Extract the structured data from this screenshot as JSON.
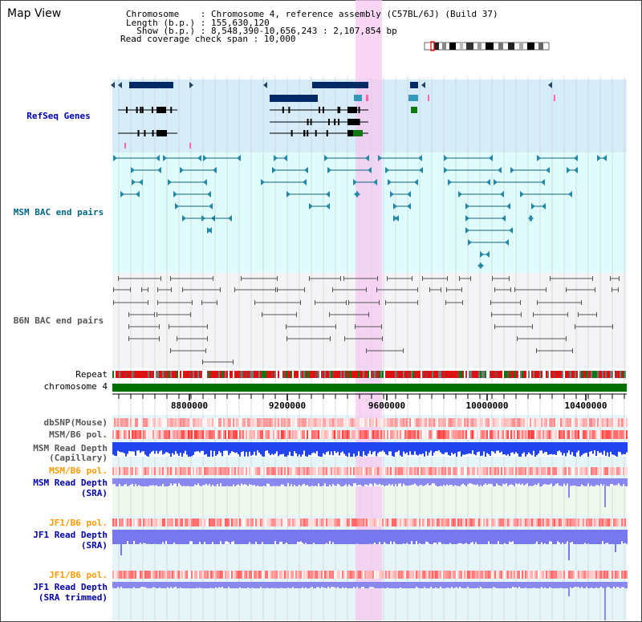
{
  "title": "Map View",
  "info": {
    "line1": "Chromosome    : Chromosome 4, reference assembly (C57BL/6J) (Build 37)",
    "line2": "Length (b.p.) : 155,630,120",
    "line3": "  Show (b.p.) : 8,548,390-10,656,243 : 2,107,854 bp",
    "line4": "Read coverage check span : 10,000"
  },
  "tracks": {
    "refseq": "RefSeq Genes",
    "msm_bac": "MSM BAC end pairs",
    "b6n_bac": "B6N BAC end pairs",
    "repeat": "Repeat",
    "chrom": "chromosome 4",
    "dbsnp": "dbSNP(Mouse)",
    "msm_b6_pol_1": "MSM/B6 pol.",
    "msm_depth_cap_1": "MSM Read Depth",
    "msm_depth_cap_2": "(Capillary)",
    "msm_b6_pol_2": "MSM/B6 pol.",
    "msm_depth_sra_1": "MSM Read Depth",
    "msm_depth_sra_2": "(SRA)",
    "jf1_b6_pol_1": "JF1/B6 pol.",
    "jf1_depth_sra_1": "JF1 Read Depth",
    "jf1_depth_sra_2": "(SRA)",
    "jf1_b6_pol_2": "JF1/B6 pol.",
    "jf1_depth_trim_1": "JF1 Read Depth",
    "jf1_depth_trim_2": "(SRA trimmed)"
  },
  "ticks": [
    "8800000",
    "9200000",
    "9600000",
    "10000000",
    "10400000"
  ],
  "colors": {
    "refseq_bg": "#d6ecf8",
    "bac_bg": "#e0fbfb",
    "b6n_bg": "#f4f4f6",
    "highlight": "#f6c8f0",
    "chrom": "#007000",
    "label_blue": "#0000aa",
    "label_teal": "#006688",
    "label_orange": "#ff9900",
    "label_gray": "#555555",
    "label_dark": "#333333"
  }
}
